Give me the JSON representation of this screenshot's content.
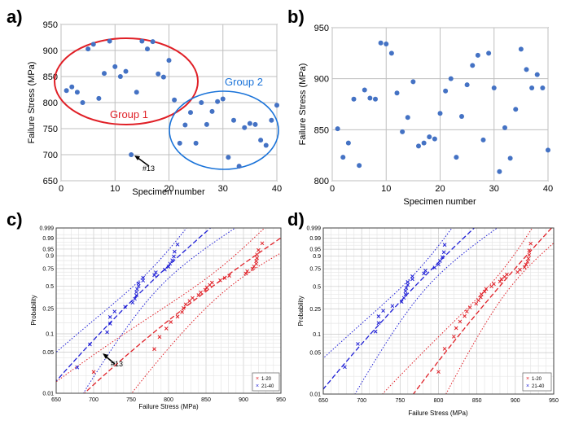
{
  "panels": {
    "a": {
      "panel_label": "a)",
      "xlabel": "Specimen number",
      "ylabel": "Failure Stress (MPa)",
      "xticks": [
        "0",
        "10",
        "20",
        "30",
        "40"
      ],
      "yticks": [
        "650",
        "700",
        "750",
        "800",
        "850",
        "900",
        "950"
      ],
      "group1_label": "Group 1",
      "group2_label": "Group 2",
      "annotation": "#13",
      "group1_color": "#e01f26",
      "group2_color": "#1a73d9"
    },
    "b": {
      "panel_label": "b)",
      "xlabel": "Specimen number",
      "ylabel": "Failure Stress (MPa)",
      "xticks": [
        "0",
        "10",
        "20",
        "30",
        "40"
      ],
      "yticks": [
        "800",
        "850",
        "900",
        "950"
      ]
    },
    "c": {
      "panel_label": "c)",
      "xlabel": "Failure Stress (MPa)",
      "ylabel": "Probability",
      "xticks": [
        "650",
        "700",
        "750",
        "800",
        "850",
        "900",
        "950"
      ],
      "yticks": [
        "0.01",
        "0.05",
        "0.1",
        "0.25",
        "0.5",
        "0.75",
        "0.9",
        "0.95",
        "0.99",
        "0.999"
      ],
      "annotation": "#13",
      "legend": [
        "1-20",
        "21-40"
      ]
    },
    "d": {
      "panel_label": "d)",
      "xlabel": "Failure Stress (MPa)",
      "ylabel": "Probability",
      "xticks": [
        "650",
        "700",
        "750",
        "800",
        "850",
        "900",
        "950"
      ],
      "yticks": [
        "0.01",
        "0.05",
        "0.1",
        "0.25",
        "0.5",
        "0.75",
        "0.9",
        "0.95",
        "0.99",
        "0.999"
      ],
      "legend": [
        "1-20",
        "21-40"
      ]
    }
  },
  "colors": {
    "marker": "#4472c4",
    "red": "#e01f26",
    "blue": "#1f1fd6",
    "grid": "#bfbfbf"
  },
  "chart_data": [
    {
      "type": "scatter",
      "panel": "a",
      "xlim": [
        0,
        40
      ],
      "ylim": [
        650,
        950
      ],
      "x": [
        1,
        2,
        3,
        4,
        5,
        6,
        7,
        8,
        9,
        10,
        11,
        12,
        13,
        14,
        15,
        16,
        17,
        18,
        19,
        20,
        21,
        22,
        23,
        24,
        25,
        26,
        27,
        28,
        29,
        30,
        31,
        32,
        33,
        34,
        35,
        36,
        37,
        38,
        39,
        40
      ],
      "y": [
        823,
        830,
        820,
        800,
        903,
        912,
        808,
        856,
        918,
        869,
        850,
        860,
        700,
        820,
        918,
        903,
        917,
        855,
        849,
        881,
        805,
        722,
        757,
        781,
        722,
        800,
        758,
        783,
        802,
        807,
        695,
        766,
        678,
        752,
        760,
        758,
        728,
        718,
        766,
        795
      ]
    },
    {
      "type": "scatter",
      "panel": "b",
      "xlim": [
        0,
        40
      ],
      "ylim": [
        800,
        950
      ],
      "x": [
        1,
        2,
        3,
        4,
        5,
        6,
        7,
        8,
        9,
        10,
        11,
        12,
        13,
        14,
        15,
        16,
        17,
        18,
        19,
        20,
        21,
        22,
        23,
        24,
        25,
        26,
        27,
        28,
        29,
        30,
        31,
        32,
        33,
        34,
        35,
        36,
        37,
        38,
        39,
        40
      ],
      "y": [
        851,
        823,
        837,
        880,
        815,
        889,
        881,
        880,
        935,
        934,
        925,
        886,
        848,
        862,
        897,
        834,
        837,
        843,
        841,
        866,
        888,
        900,
        823,
        863,
        894,
        913,
        923,
        840,
        925,
        891,
        809,
        852,
        822,
        870,
        929,
        909,
        891,
        904,
        891,
        830
      ]
    },
    {
      "type": "scatter",
      "panel": "c",
      "scale": "weibull",
      "xlim": [
        650,
        950
      ],
      "ylim": [
        0.01,
        0.999
      ],
      "series": [
        {
          "name": "1-20",
          "x": [
            700,
            781,
            788,
            797,
            803,
            812,
            818,
            820,
            823,
            828,
            832,
            840,
            843,
            849,
            851,
            855,
            858,
            869,
            875,
            881,
            903,
            905,
            912,
            914,
            917,
            917,
            918,
            918,
            920,
            925
          ]
        },
        {
          "name": "21-40",
          "x": [
            678,
            695,
            718,
            722,
            722,
            728,
            742,
            752,
            755,
            757,
            757,
            758,
            760,
            760,
            766,
            766,
            781,
            783,
            795,
            800,
            802,
            805,
            807,
            808,
            812
          ]
        }
      ]
    },
    {
      "type": "scatter",
      "panel": "d",
      "scale": "weibull",
      "xlim": [
        650,
        950
      ],
      "ylim": [
        0.01,
        0.999
      ],
      "series": [
        {
          "name": "1-20",
          "x": [
            800,
            808,
            820,
            823,
            828,
            834,
            837,
            841,
            849,
            852,
            855,
            856,
            860,
            862,
            869,
            872,
            880,
            882,
            886,
            889,
            903,
            906,
            912,
            914,
            916,
            917,
            918,
            918,
            920
          ]
        },
        {
          "name": "21-40",
          "x": [
            678,
            695,
            718,
            722,
            722,
            728,
            740,
            752,
            755,
            757,
            757,
            758,
            760,
            760,
            766,
            766,
            781,
            783,
            795,
            800,
            802,
            805,
            807,
            808
          ]
        }
      ]
    }
  ]
}
